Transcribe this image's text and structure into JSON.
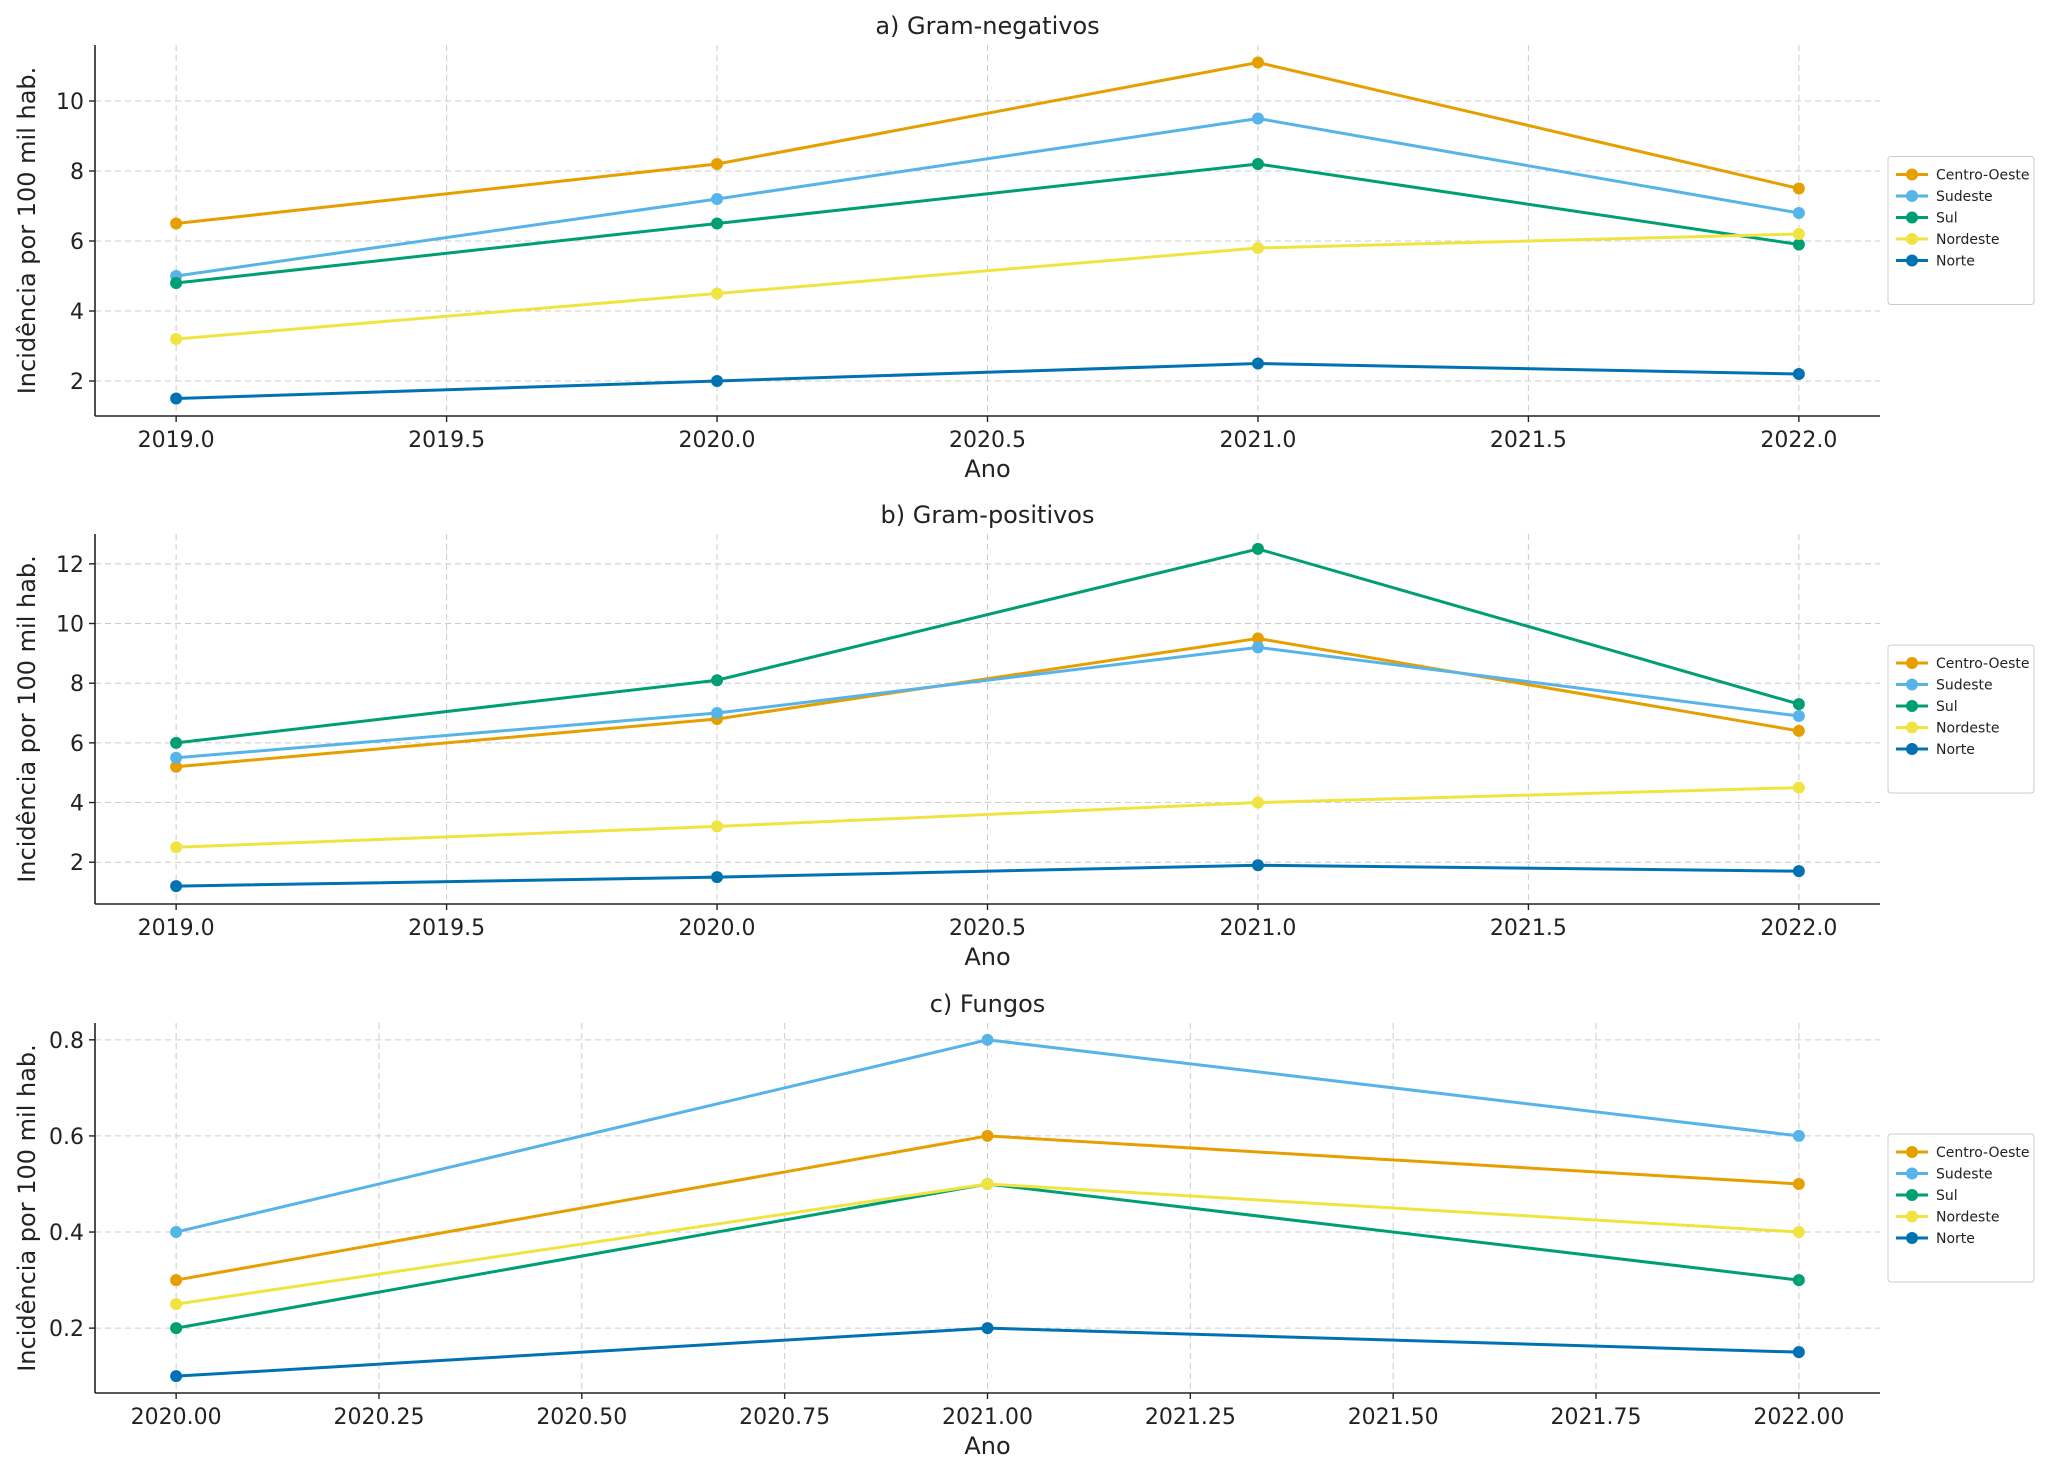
{
  "chart_data": [
    {
      "type": "line",
      "title": "a) Gram-negativos",
      "xlabel": "Ano",
      "ylabel": "Incidência por 100 mil hab.",
      "x": [
        2019,
        2020,
        2021,
        2022
      ],
      "xlim": [
        2018.85,
        2022.15
      ],
      "ylim": [
        1.0,
        11.6
      ],
      "xticks": [
        2019.0,
        2019.5,
        2020.0,
        2020.5,
        2021.0,
        2021.5,
        2022.0
      ],
      "xtick_labels": [
        "2019.0",
        "2019.5",
        "2020.0",
        "2020.5",
        "2021.0",
        "2021.5",
        "2022.0"
      ],
      "yticks": [
        2,
        4,
        6,
        8,
        10
      ],
      "ytick_labels": [
        "2",
        "4",
        "6",
        "8",
        "10"
      ],
      "grid": true,
      "legend_position": "right",
      "series": [
        {
          "name": "Centro-Oeste",
          "color": "#E69F00",
          "values": [
            6.5,
            8.2,
            11.1,
            7.5
          ]
        },
        {
          "name": "Sudeste",
          "color": "#56B4E9",
          "values": [
            5.0,
            7.2,
            9.5,
            6.8
          ]
        },
        {
          "name": "Sul",
          "color": "#009E73",
          "values": [
            4.8,
            6.5,
            8.2,
            5.9
          ]
        },
        {
          "name": "Nordeste",
          "color": "#F0E442",
          "values": [
            3.2,
            4.5,
            5.8,
            6.2
          ]
        },
        {
          "name": "Norte",
          "color": "#0072B2",
          "values": [
            1.5,
            2.0,
            2.5,
            2.2
          ]
        }
      ]
    },
    {
      "type": "line",
      "title": "b) Gram-positivos",
      "xlabel": "Ano",
      "ylabel": "Incidência por 100 mil hab.",
      "x": [
        2019,
        2020,
        2021,
        2022
      ],
      "xlim": [
        2018.85,
        2022.15
      ],
      "ylim": [
        0.6,
        13.0
      ],
      "xticks": [
        2019.0,
        2019.5,
        2020.0,
        2020.5,
        2021.0,
        2021.5,
        2022.0
      ],
      "xtick_labels": [
        "2019.0",
        "2019.5",
        "2020.0",
        "2020.5",
        "2021.0",
        "2021.5",
        "2022.0"
      ],
      "yticks": [
        2,
        4,
        6,
        8,
        10,
        12
      ],
      "ytick_labels": [
        "2",
        "4",
        "6",
        "8",
        "10",
        "12"
      ],
      "grid": true,
      "legend_position": "right",
      "series": [
        {
          "name": "Centro-Oeste",
          "color": "#E69F00",
          "values": [
            5.2,
            6.8,
            9.5,
            6.4
          ]
        },
        {
          "name": "Sudeste",
          "color": "#56B4E9",
          "values": [
            5.5,
            7.0,
            9.2,
            6.9
          ]
        },
        {
          "name": "Sul",
          "color": "#009E73",
          "values": [
            6.0,
            8.1,
            12.5,
            7.3
          ]
        },
        {
          "name": "Nordeste",
          "color": "#F0E442",
          "values": [
            2.5,
            3.2,
            4.0,
            4.5
          ]
        },
        {
          "name": "Norte",
          "color": "#0072B2",
          "values": [
            1.2,
            1.5,
            1.9,
            1.7
          ]
        }
      ]
    },
    {
      "type": "line",
      "title": "c) Fungos",
      "xlabel": "Ano",
      "ylabel": "Incidência por 100 mil hab.",
      "x": [
        2020,
        2021,
        2022
      ],
      "xlim": [
        2019.9,
        2022.1
      ],
      "ylim": [
        0.065,
        0.835
      ],
      "xticks": [
        2020.0,
        2020.25,
        2020.5,
        2020.75,
        2021.0,
        2021.25,
        2021.5,
        2021.75,
        2022.0
      ],
      "xtick_labels": [
        "2020.00",
        "2020.25",
        "2020.50",
        "2020.75",
        "2021.00",
        "2021.25",
        "2021.50",
        "2021.75",
        "2022.00"
      ],
      "yticks": [
        0.2,
        0.4,
        0.6,
        0.8
      ],
      "ytick_labels": [
        "0.2",
        "0.4",
        "0.6",
        "0.8"
      ],
      "grid": true,
      "legend_position": "right",
      "series": [
        {
          "name": "Centro-Oeste",
          "color": "#E69F00",
          "values": [
            0.3,
            0.6,
            0.5
          ]
        },
        {
          "name": "Sudeste",
          "color": "#56B4E9",
          "values": [
            0.4,
            0.8,
            0.6
          ]
        },
        {
          "name": "Sul",
          "color": "#009E73",
          "values": [
            0.2,
            0.5,
            0.3
          ]
        },
        {
          "name": "Nordeste",
          "color": "#F0E442",
          "values": [
            0.25,
            0.5,
            0.4
          ]
        },
        {
          "name": "Norte",
          "color": "#0072B2",
          "values": [
            0.1,
            0.2,
            0.15
          ]
        }
      ]
    }
  ]
}
